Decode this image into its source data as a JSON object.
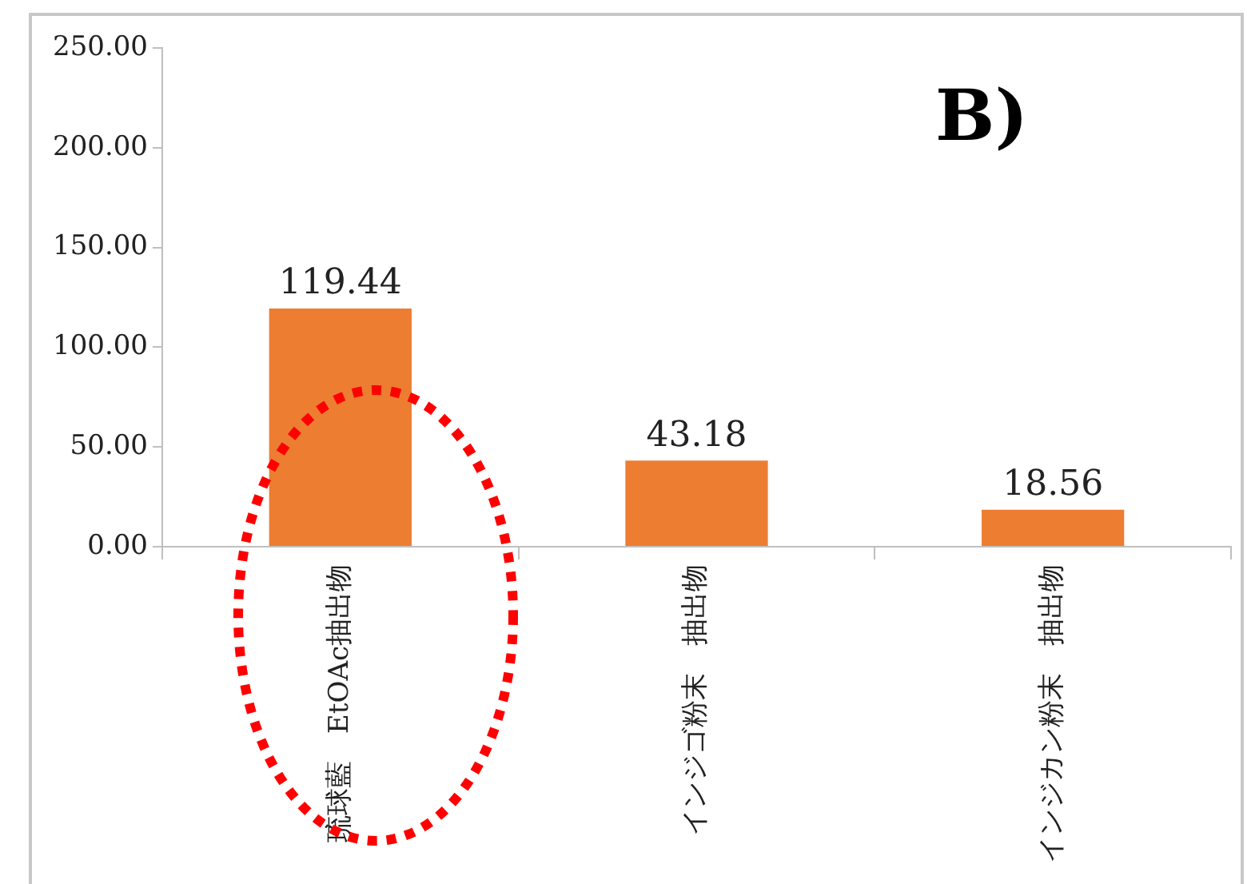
{
  "chart_data": {
    "type": "bar",
    "annotations": [
      "B)"
    ],
    "categories": [
      "琉球藍　EtOAc抽出物",
      "インジゴ粉末　抽出物",
      "インジカン粉末　抽出物"
    ],
    "values": [
      119.44,
      43.18,
      18.56
    ],
    "color": "#ed7d31",
    "ylim": [
      0,
      250
    ],
    "yticks": [
      {
        "value": 0,
        "label": "0.00"
      },
      {
        "value": 50,
        "label": "50.00"
      },
      {
        "value": 100,
        "label": "100.00"
      },
      {
        "value": 150,
        "label": "150.00"
      },
      {
        "value": 200,
        "label": "200.00"
      },
      {
        "value": 250,
        "label": "250.00"
      }
    ],
    "grid": false,
    "legend": false,
    "data_labels": true
  }
}
